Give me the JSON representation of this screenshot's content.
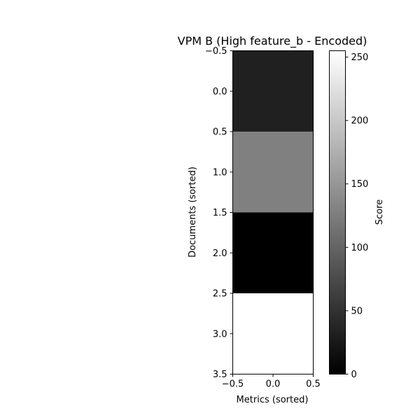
{
  "chart_data": {
    "type": "heatmap",
    "title": "VPM B (High feature_b - Encoded)",
    "xlabel": "Metrics (sorted)",
    "ylabel": "Documents (sorted)",
    "xlim": [
      -0.5,
      0.5
    ],
    "ylim": [
      3.5,
      -0.5
    ],
    "x_tick_labels": [
      "−0.5",
      "0.0",
      "0.5"
    ],
    "y_tick_labels": [
      "−0.5",
      "0.0",
      "0.5",
      "1.0",
      "1.5",
      "2.0",
      "2.5",
      "3.0",
      "3.5"
    ],
    "colormap": "gray",
    "values": [
      [
        32
      ],
      [
        128
      ],
      [
        0
      ],
      [
        255
      ]
    ],
    "colorbar": {
      "label": "Score",
      "range": [
        0,
        255
      ],
      "tick_labels": [
        "0",
        "50",
        "100",
        "150",
        "200",
        "250"
      ]
    }
  }
}
